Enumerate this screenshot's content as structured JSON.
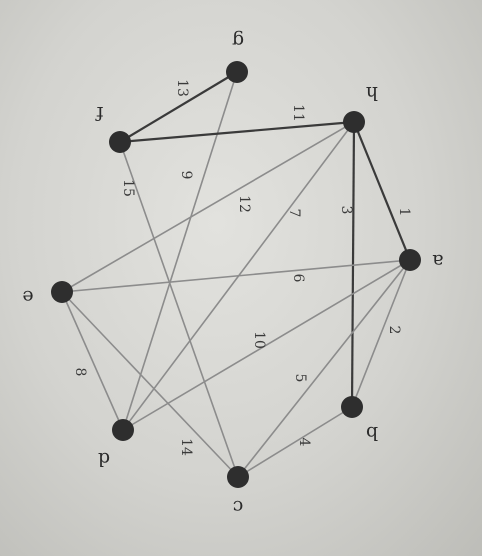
{
  "graph": {
    "vertices": [
      {
        "id": "a",
        "label": "a"
      },
      {
        "id": "b",
        "label": "b"
      },
      {
        "id": "c",
        "label": "c"
      },
      {
        "id": "d",
        "label": "d"
      },
      {
        "id": "e",
        "label": "e"
      },
      {
        "id": "f",
        "label": "f"
      },
      {
        "id": "g",
        "label": "g"
      },
      {
        "id": "h",
        "label": "h"
      }
    ],
    "edges": [
      {
        "from": "h",
        "to": "a",
        "weight": "1"
      },
      {
        "from": "a",
        "to": "b",
        "weight": "2"
      },
      {
        "from": "h",
        "to": "b",
        "weight": "3"
      },
      {
        "from": "b",
        "to": "c",
        "weight": "4"
      },
      {
        "from": "a",
        "to": "c",
        "weight": "5"
      },
      {
        "from": "a",
        "to": "e",
        "weight": "6"
      },
      {
        "from": "h",
        "to": "d",
        "weight": "7"
      },
      {
        "from": "e",
        "to": "d",
        "weight": "8"
      },
      {
        "from": "g",
        "to": "d",
        "weight": "9"
      },
      {
        "from": "a",
        "to": "d",
        "weight": "10"
      },
      {
        "from": "f",
        "to": "h",
        "weight": "11"
      },
      {
        "from": "h",
        "to": "e",
        "weight": "12"
      },
      {
        "from": "f",
        "to": "g",
        "weight": "13"
      },
      {
        "from": "e",
        "to": "c",
        "weight": "14"
      },
      {
        "from": "f",
        "to": "c",
        "weight": "15"
      }
    ],
    "colors": {
      "edge_dark": "#3a3a3a",
      "edge_light": "#8c8c8c",
      "node": "#2e2e2e",
      "text": "#2b2b2b"
    }
  }
}
